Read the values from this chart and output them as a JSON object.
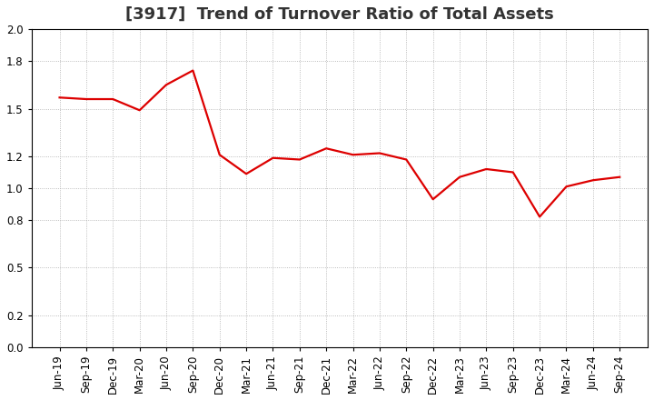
{
  "title": "[3917]  Trend of Turnover Ratio of Total Assets",
  "x_labels": [
    "Jun-19",
    "Sep-19",
    "Dec-19",
    "Mar-20",
    "Jun-20",
    "Sep-20",
    "Dec-20",
    "Mar-21",
    "Jun-21",
    "Sep-21",
    "Dec-21",
    "Mar-22",
    "Jun-22",
    "Sep-22",
    "Dec-22",
    "Mar-23",
    "Jun-23",
    "Sep-23",
    "Dec-23",
    "Mar-24",
    "Jun-24",
    "Sep-24"
  ],
  "y_values": [
    1.57,
    1.56,
    1.56,
    1.49,
    1.65,
    1.74,
    1.21,
    1.09,
    1.19,
    1.18,
    1.25,
    1.21,
    1.22,
    1.18,
    0.93,
    1.07,
    1.12,
    1.1,
    0.82,
    1.01,
    1.05,
    1.07
  ],
  "line_color": "#dd0000",
  "line_width": 1.6,
  "ylim": [
    0.0,
    2.0
  ],
  "yticks": [
    0.0,
    0.2,
    0.5,
    0.8,
    1.0,
    1.2,
    1.5,
    1.8,
    2.0
  ],
  "background_color": "#ffffff",
  "grid_color": "#aaaaaa",
  "title_fontsize": 13,
  "tick_fontsize": 8.5,
  "spine_color": "#000000"
}
